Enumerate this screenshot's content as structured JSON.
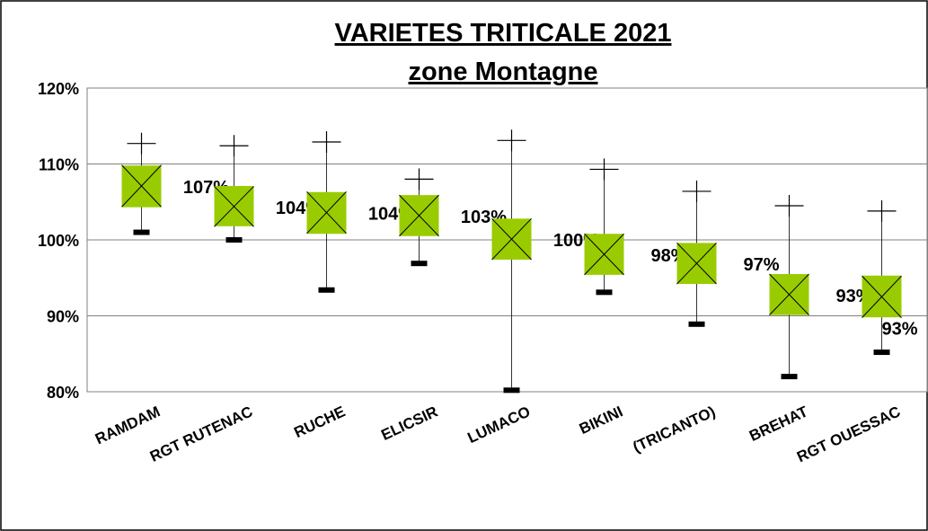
{
  "chart_data": {
    "type": "box",
    "title": "VARIETES TRITICALE 2021",
    "subtitle": "zone Montagne",
    "categories": [
      "RAMDAM",
      "RGT RUTENAC",
      "RUCHE",
      "ELICSIR",
      "LUMACO",
      "BIKINI",
      "(TRICANTO)",
      "BREHAT",
      "RGT OUESSAC"
    ],
    "box_top": [
      109.8,
      107.1,
      106.3,
      105.9,
      102.8,
      100.8,
      99.6,
      95.5,
      95.3
    ],
    "box_bottom": [
      104.3,
      101.8,
      100.8,
      100.5,
      97.4,
      95.4,
      94.2,
      90.1,
      89.8
    ],
    "mean": [
      107.1,
      104.4,
      103.6,
      103.2,
      100.1,
      98.1,
      96.9,
      92.8,
      92.5
    ],
    "value_labels": [
      "107%",
      "104%",
      "104%",
      "103%",
      "100%",
      "98%",
      "97%",
      "93%",
      "93%"
    ],
    "max": [
      112.7,
      112.4,
      112.9,
      108.0,
      113.1,
      109.3,
      106.4,
      104.5,
      103.8
    ],
    "min": [
      101.0,
      100.0,
      93.4,
      96.9,
      80.2,
      93.1,
      88.9,
      82.0,
      85.2
    ],
    "color": "#99cc00",
    "ylim": [
      80,
      120
    ],
    "yticks": [
      {
        "value": 80,
        "label": "80%"
      },
      {
        "value": 90,
        "label": "90%"
      },
      {
        "value": 100,
        "label": "100%"
      },
      {
        "value": 110,
        "label": "110%"
      },
      {
        "value": 120,
        "label": "120%"
      }
    ],
    "grid": true
  }
}
